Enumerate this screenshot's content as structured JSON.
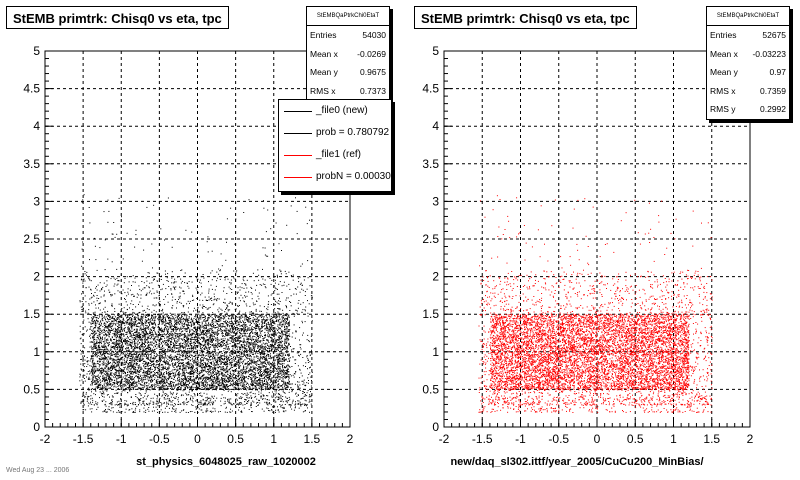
{
  "panels": [
    {
      "title": "StEMB primtrk: Chisq0 vs eta, tpc",
      "stats": {
        "name": "StEMBQaPtrkChi0EtaT",
        "rows": [
          {
            "label": "Entries",
            "value": "54030"
          },
          {
            "label": "Mean x",
            "value": "-0.0269"
          },
          {
            "label": "Mean y",
            "value": "0.9675"
          },
          {
            "label": "RMS x",
            "value": "0.7373"
          }
        ]
      },
      "legend": [
        {
          "text": "_file0 (new)",
          "color": "#000000"
        },
        {
          "text": "prob = 0.780792",
          "color": "#000000"
        },
        {
          "text": "_file1 (ref)",
          "color": "#ff0000"
        },
        {
          "text": "probN = 0.000305",
          "color": "#ff0000"
        }
      ],
      "xtitle": "st_physics_6048025_raw_1020002",
      "marker_color": "#000000"
    },
    {
      "title": "StEMB primtrk: Chisq0 vs eta, tpc",
      "stats": {
        "name": "StEMBQaPtrkChi0EtaT",
        "rows": [
          {
            "label": "Entries",
            "value": "52675"
          },
          {
            "label": "Mean x",
            "value": "-0.03223"
          },
          {
            "label": "Mean y",
            "value": "0.97"
          },
          {
            "label": "RMS x",
            "value": "0.7359"
          },
          {
            "label": "RMS y",
            "value": "0.2992"
          }
        ]
      },
      "xtitle": "new/daq_sl302.ittf/year_2005/CuCu200_MinBias/",
      "marker_color": "#ff0000"
    }
  ],
  "footer_fragment": "Wed Aug 23 ... 2006",
  "chart_data": [
    {
      "type": "scatter",
      "title": "StEMB primtrk: Chisq0 vs eta, tpc",
      "xlabel": "st_physics_6048025_raw_1020002",
      "ylabel": "",
      "xlim": [
        -2,
        2
      ],
      "ylim": [
        0,
        5
      ],
      "xticks": [
        "-2",
        "-1.5",
        "-1",
        "-0.5",
        "0",
        "0.5",
        "1",
        "1.5",
        "2"
      ],
      "yticks": [
        "0",
        "0.5",
        "1",
        "1.5",
        "2",
        "2.5",
        "3",
        "3.5",
        "4",
        "4.5",
        "5"
      ],
      "grid": true,
      "series": [
        {
          "name": "_file0 (new)",
          "color": "#000000",
          "entries": 54030,
          "mean_x": -0.0269,
          "mean_y": 0.9675,
          "rms_x": 0.7373,
          "core_region": {
            "x": [
              -1.4,
              1.2
            ],
            "y": [
              0.5,
              1.5
            ]
          },
          "halo_region": {
            "x": [
              -1.55,
              1.5
            ],
            "y": [
              0.2,
              2.3
            ]
          }
        }
      ]
    },
    {
      "type": "scatter",
      "title": "StEMB primtrk: Chisq0 vs eta, tpc",
      "xlabel": "new/daq_sl302.ittf/year_2005/CuCu200_MinBias/",
      "ylabel": "",
      "xlim": [
        -2,
        2
      ],
      "ylim": [
        0,
        5
      ],
      "xticks": [
        "-2",
        "-1.5",
        "-1",
        "-0.5",
        "0",
        "0.5",
        "1",
        "1.5",
        "2"
      ],
      "yticks": [
        "0",
        "0.5",
        "1",
        "1.5",
        "2",
        "2.5",
        "3",
        "3.5",
        "4",
        "4.5",
        "5"
      ],
      "grid": true,
      "series": [
        {
          "name": "_file1 (ref)",
          "color": "#ff0000",
          "entries": 52675,
          "mean_x": -0.03223,
          "mean_y": 0.97,
          "rms_x": 0.7359,
          "rms_y": 0.2992,
          "core_region": {
            "x": [
              -1.4,
              1.2
            ],
            "y": [
              0.5,
              1.5
            ]
          },
          "halo_region": {
            "x": [
              -1.55,
              1.5
            ],
            "y": [
              0.2,
              2.3
            ]
          }
        }
      ]
    }
  ]
}
